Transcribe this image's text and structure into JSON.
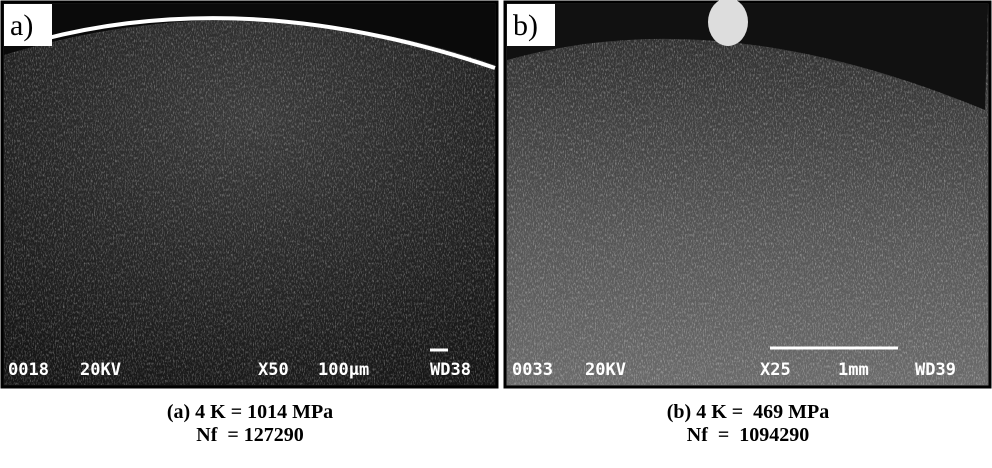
{
  "panels": [
    {
      "label": "a)",
      "sem": [
        "0018",
        "20KV",
        "X50",
        "100µm",
        "WD38"
      ],
      "caption": [
        "(a) 4 K = 1014 MPa",
        "Nf  = 127290"
      ]
    },
    {
      "label": "b)",
      "sem": [
        "0033",
        "20KV",
        "X25",
        "1mm",
        "WD39"
      ],
      "caption": [
        "(b) 4 K =  469 MPa",
        "Nf  =  1094290"
      ]
    }
  ]
}
